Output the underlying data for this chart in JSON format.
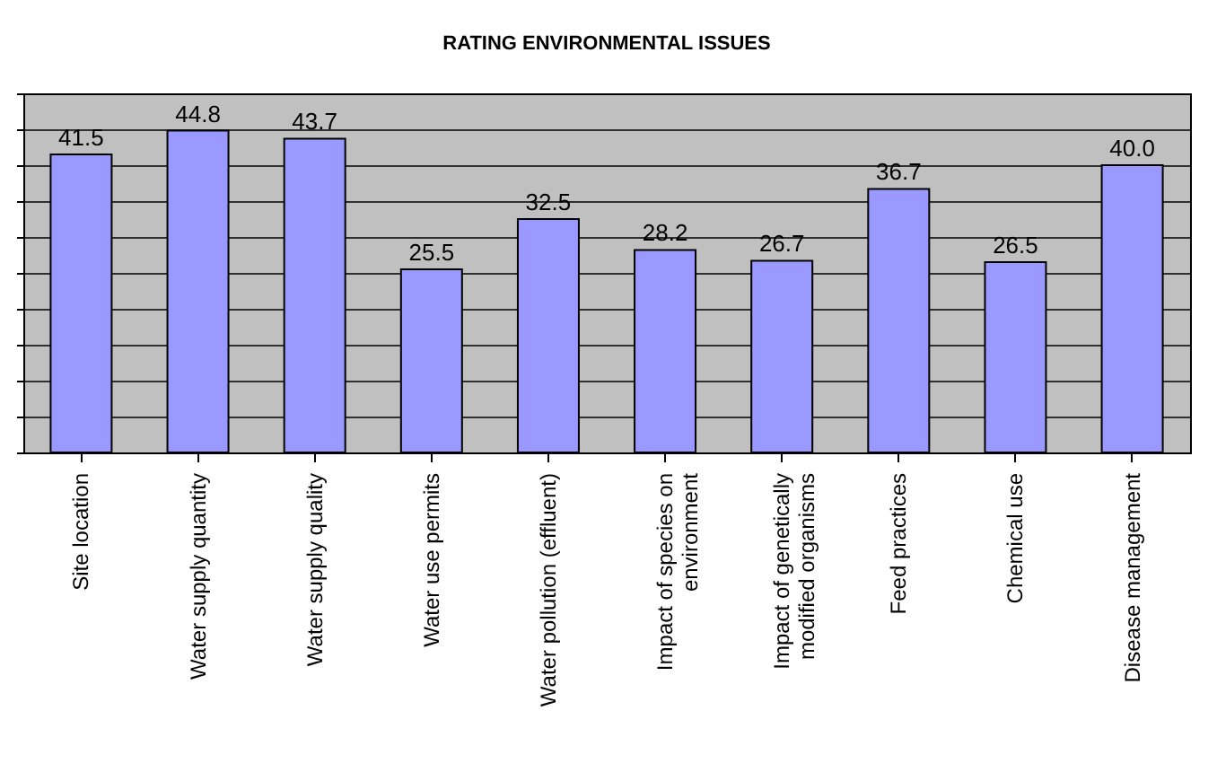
{
  "chart_data": {
    "type": "bar",
    "title": "RATING ENVIRONMENTAL ISSUES",
    "categories": [
      "Site location",
      "Water supply quantity",
      "Water supply quality",
      "Water use permits",
      "Water pollution (effluent)",
      "Impact of species on environment",
      "Impact of genetically modified organisms",
      "Feed practices",
      "Chemical use",
      "Disease management"
    ],
    "values": [
      41.5,
      44.8,
      43.7,
      25.5,
      32.5,
      28.2,
      26.7,
      36.7,
      26.5,
      40.0
    ],
    "value_labels": [
      "41.5",
      "44.8",
      "43.7",
      "25.5",
      "32.5",
      "28.2",
      "26.7",
      "36.7",
      "26.5",
      "40.0"
    ],
    "color": "#9999ff",
    "ylim": [
      0,
      50
    ],
    "yticks": [
      {
        "value": 0,
        "label": null
      },
      {
        "value": 5,
        "label": null
      },
      {
        "value": 10,
        "label": null
      },
      {
        "value": 15,
        "label": null
      },
      {
        "value": 20,
        "label": null
      },
      {
        "value": 25,
        "label": null
      },
      {
        "value": 30,
        "label": null
      },
      {
        "value": 35,
        "label": null
      },
      {
        "value": 40,
        "label": null
      },
      {
        "value": 45,
        "label": null
      },
      {
        "value": 50,
        "label": null
      }
    ],
    "grid": "y",
    "tick_labels": "x",
    "legend": false
  }
}
